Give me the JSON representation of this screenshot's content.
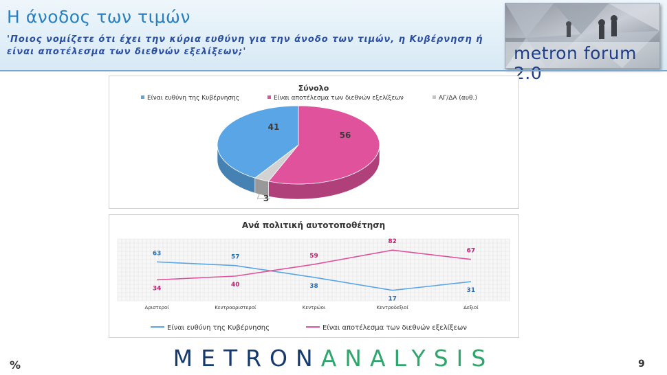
{
  "header": {
    "title": "Η άνοδος των τιμών",
    "subtitle": "'Ποιος νομίζετε ότι έχει την κύρια ευθύνη για την άνοδο των τιμών, η Κυβέρνηση ή είναι αποτέλεσμα των διεθνών εξελίξεων;'",
    "logo_text": "metron forum 2.0"
  },
  "footer": {
    "unit": "%",
    "brand_part1": "METRON",
    "brand_part2": "ANALYSIS",
    "page_number": "9"
  },
  "colors": {
    "blue": "#5aa5e6",
    "pink": "#e0529b",
    "gray": "#c4c4c4",
    "brand_dark": "#16396f",
    "brand_green": "#2fa66b"
  },
  "chart_data": [
    {
      "type": "pie",
      "title": "Σύνολο",
      "legend": "top",
      "labels": [
        "Είναι ευθύνη της Κυβέρνησης",
        "Είναι αποτέλεσμα των διεθνών εξελίξεων",
        "ΑΓ/ΔΑ (αυθ.)"
      ],
      "values": [
        41,
        56,
        3
      ]
    },
    {
      "type": "line",
      "title": "Ανά πολιτική αυτοτοποθέτηση",
      "legend": "bottom",
      "categories": [
        "Αριστεροί",
        "Κεντροαριστεροί",
        "Κεντρώοι",
        "Κεντροδεξιοί",
        "Δεξιοί"
      ],
      "ylim": [
        0,
        100
      ],
      "grid": true,
      "series": [
        {
          "name": "Είναι ευθύνη της Κυβέρνησης",
          "values": [
            63,
            57,
            38,
            17,
            31
          ]
        },
        {
          "name": "Είναι αποτέλεσμα των διεθνών εξελίξεων",
          "values": [
            34,
            40,
            59,
            82,
            67
          ]
        }
      ]
    }
  ]
}
